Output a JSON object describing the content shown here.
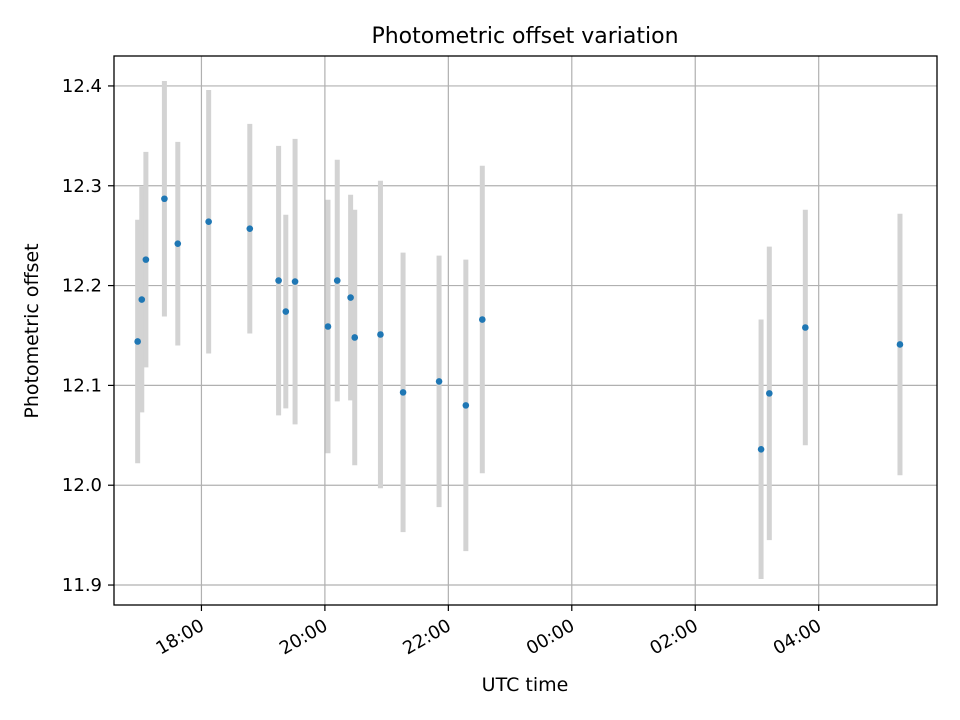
{
  "chart_data": {
    "type": "scatter",
    "title": "Photometric offset variation",
    "xlabel": "UTC time",
    "ylabel": "Photometric offset",
    "xlim": [
      "16:35",
      "05:55"
    ],
    "ylim": [
      11.88,
      12.43
    ],
    "grid": true,
    "x_ticks": [
      "18:00",
      "20:00",
      "22:00",
      "00:00",
      "02:00",
      "04:00"
    ],
    "y_ticks": [
      "11.9",
      "12.0",
      "12.1",
      "12.2",
      "12.3",
      "12.4"
    ],
    "colors": {
      "point": "#1f77b4",
      "errorbar": "#d3d3d3",
      "grid": "#b0b0b0"
    },
    "points": [
      {
        "x": "16:58",
        "y": 12.144,
        "err": 0.122
      },
      {
        "x": "17:02",
        "y": 12.186,
        "err": 0.113
      },
      {
        "x": "17:06",
        "y": 12.226,
        "err": 0.108
      },
      {
        "x": "17:24",
        "y": 12.287,
        "err": 0.118
      },
      {
        "x": "17:37",
        "y": 12.242,
        "err": 0.102
      },
      {
        "x": "18:07",
        "y": 12.264,
        "err": 0.132
      },
      {
        "x": "18:47",
        "y": 12.257,
        "err": 0.105
      },
      {
        "x": "19:15",
        "y": 12.205,
        "err": 0.135
      },
      {
        "x": "19:22",
        "y": 12.174,
        "err": 0.097
      },
      {
        "x": "19:31",
        "y": 12.204,
        "err": 0.143
      },
      {
        "x": "20:03",
        "y": 12.159,
        "err": 0.127
      },
      {
        "x": "20:12",
        "y": 12.205,
        "err": 0.121
      },
      {
        "x": "20:25",
        "y": 12.188,
        "err": 0.103
      },
      {
        "x": "20:29",
        "y": 12.148,
        "err": 0.128
      },
      {
        "x": "20:54",
        "y": 12.151,
        "err": 0.154
      },
      {
        "x": "21:16",
        "y": 12.093,
        "err": 0.14
      },
      {
        "x": "21:51",
        "y": 12.104,
        "err": 0.126
      },
      {
        "x": "22:17",
        "y": 12.08,
        "err": 0.146
      },
      {
        "x": "22:33",
        "y": 12.166,
        "err": 0.154
      },
      {
        "x": "03:04",
        "y": 12.036,
        "err": 0.13
      },
      {
        "x": "03:12",
        "y": 12.092,
        "err": 0.147
      },
      {
        "x": "03:47",
        "y": 12.158,
        "err": 0.118
      },
      {
        "x": "05:19",
        "y": 12.141,
        "err": 0.131
      }
    ]
  }
}
